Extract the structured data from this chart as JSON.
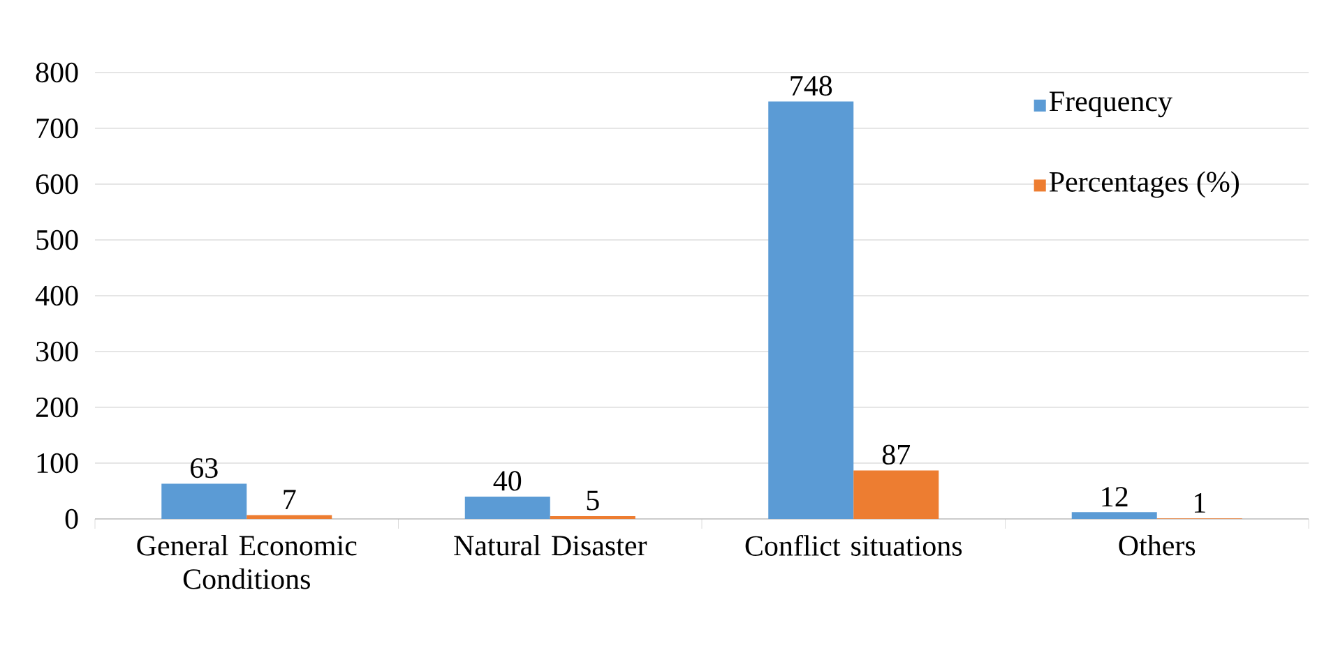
{
  "chart_data": {
    "type": "bar",
    "categories": [
      "General Economic Conditions",
      "Natural Disaster",
      "Conflict situations",
      "Others"
    ],
    "series": [
      {
        "name": "Frequency",
        "color": "#5b9bd5",
        "values": [
          63,
          40,
          748,
          12
        ]
      },
      {
        "name": "Percentages (%)",
        "color": "#ed7d31",
        "values": [
          7,
          5,
          87,
          1
        ]
      }
    ],
    "ylim": [
      0,
      800
    ],
    "yticks": [
      0,
      100,
      200,
      300,
      400,
      500,
      600,
      700,
      800
    ],
    "grid": "y",
    "legend": "top right",
    "data_labels": true
  }
}
